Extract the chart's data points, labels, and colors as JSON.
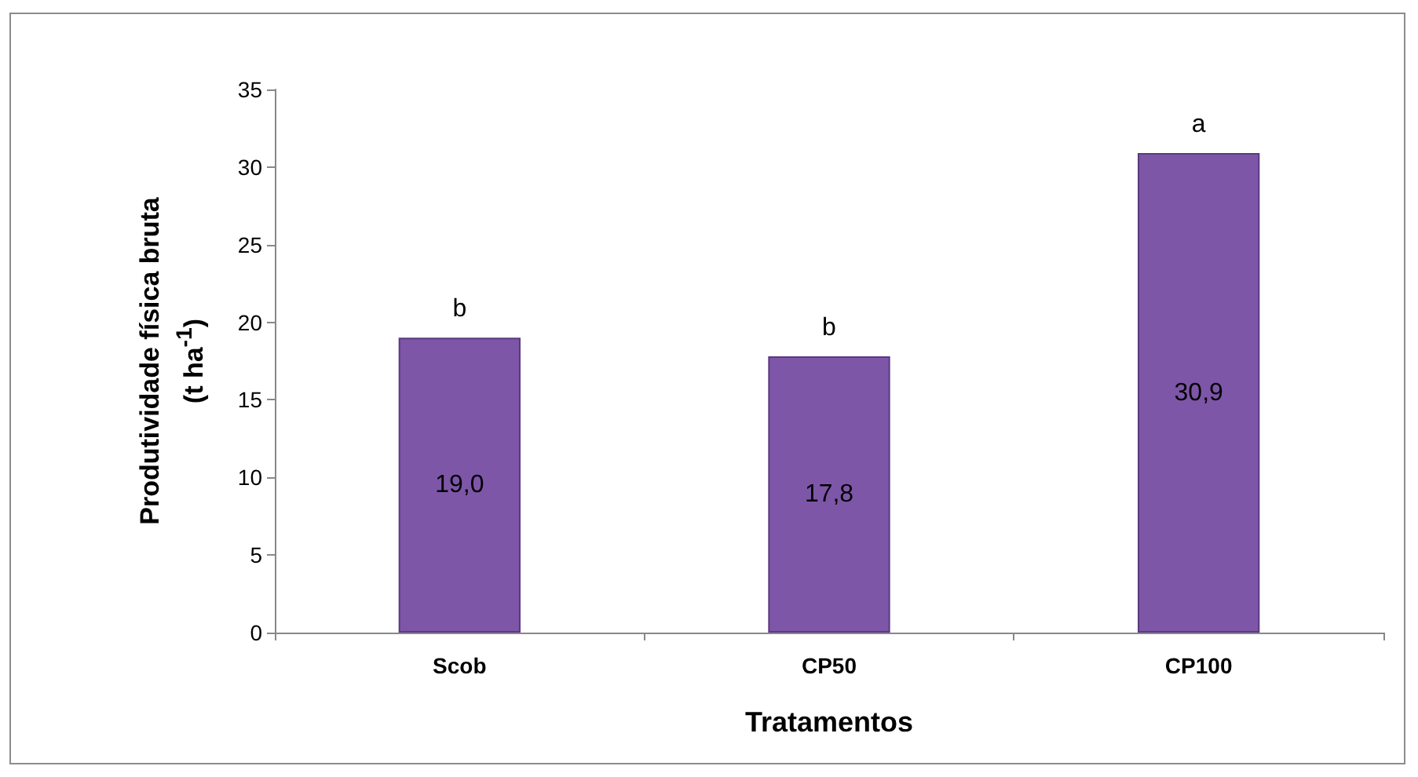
{
  "chart_data": {
    "type": "bar",
    "xlabel": "Tratamentos",
    "ylabel": "Produtividade física bruta\n(t ha$^{-1}$)",
    "categories": [
      "Scob",
      "CP50",
      "CP100"
    ],
    "values": [
      19.0,
      17.8,
      30.9
    ],
    "value_labels": [
      "19,0",
      "17,8",
      "30,9"
    ],
    "color": "#7e56a8",
    "ylim": [
      0,
      35
    ],
    "yticks": [
      0,
      5,
      10,
      15,
      20,
      25,
      30,
      35
    ],
    "grid": false,
    "annotations": [
      {
        "text": "b",
        "x": "Scob",
        "y": 19.0
      },
      {
        "text": "b",
        "x": "CP50",
        "y": 17.8
      },
      {
        "text": "a",
        "x": "CP100",
        "y": 30.9
      }
    ]
  }
}
